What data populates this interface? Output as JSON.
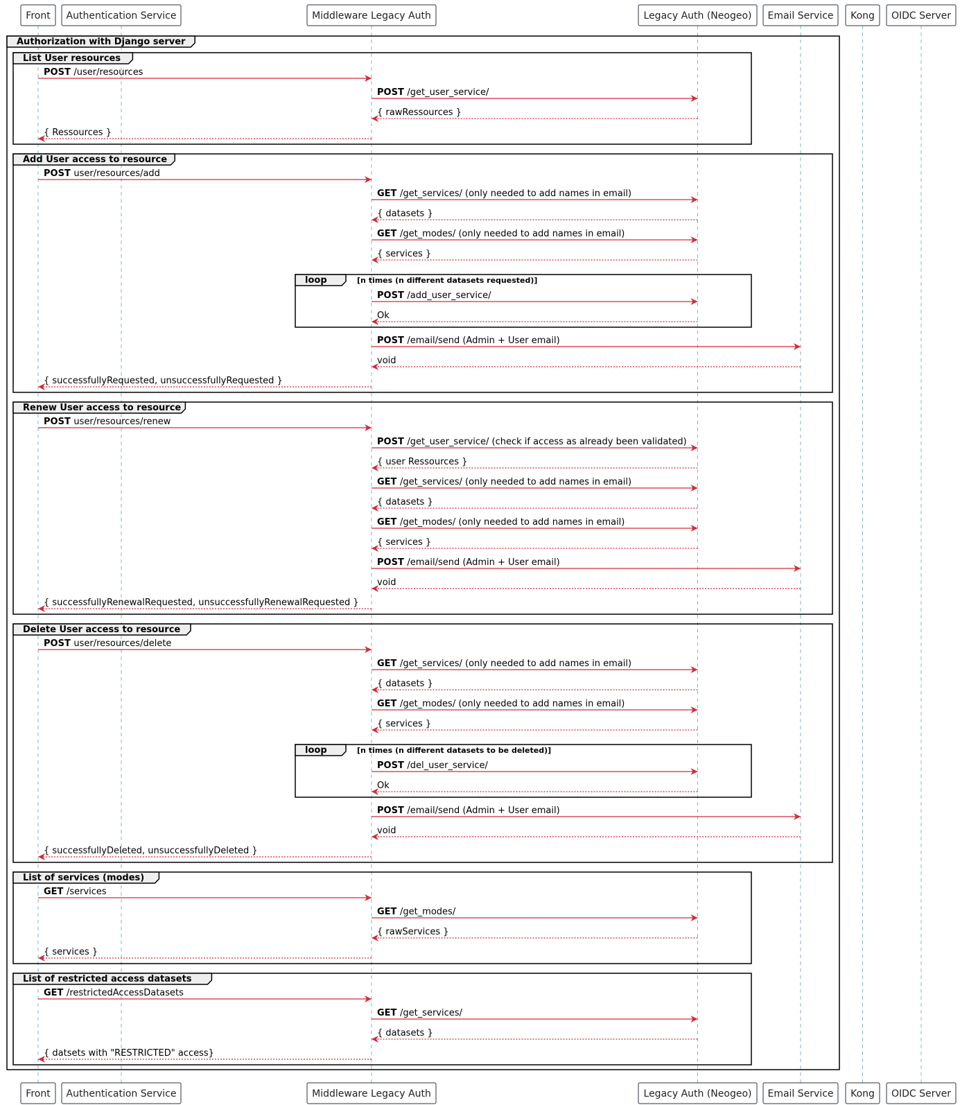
{
  "participants": [
    "Front",
    "Authentication Service",
    "Middleware Legacy Auth",
    "Legacy Auth (Neogeo)",
    "Email Service",
    "Kong",
    "OIDC Server"
  ],
  "colors": {
    "arrow": "#D32B37",
    "lifeline": "#7FB5D0",
    "box_border": "#2B3442",
    "group_border": "#000000",
    "group_tab_fill": "#EEEEEE"
  },
  "outer_group": {
    "title": "Authorization with Django server"
  },
  "groups": [
    {
      "title": "List User resources",
      "messages": [
        {
          "from": 0,
          "to": 2,
          "verb": "POST",
          "text": "/user/resources",
          "dashed": false
        },
        {
          "from": 2,
          "to": 3,
          "verb": "POST",
          "text": "/get_user_service/",
          "dashed": false
        },
        {
          "from": 3,
          "to": 2,
          "verb": "",
          "text": "{ rawRessources }",
          "dashed": true
        },
        {
          "from": 2,
          "to": 0,
          "verb": "",
          "text": "{ Ressources }",
          "dashed": true
        }
      ]
    },
    {
      "title": "Add User access to resource",
      "messages": [
        {
          "from": 0,
          "to": 2,
          "verb": "POST",
          "text": "user/resources/add",
          "dashed": false
        },
        {
          "from": 2,
          "to": 3,
          "verb": "GET",
          "text": "/get_services/ (only needed to add names in email)",
          "dashed": false
        },
        {
          "from": 3,
          "to": 2,
          "verb": "",
          "text": "{ datasets }",
          "dashed": true
        },
        {
          "from": 2,
          "to": 3,
          "verb": "GET",
          "text": "/get_modes/ (only needed to add names in email)",
          "dashed": false
        },
        {
          "from": 3,
          "to": 2,
          "verb": "",
          "text": "{ services }",
          "dashed": true
        },
        {
          "loop": "loop",
          "condition": "[n times (n different datasets requested)]",
          "messages": [
            {
              "from": 2,
              "to": 3,
              "verb": "POST",
              "text": "/add_user_service/",
              "dashed": false
            },
            {
              "from": 3,
              "to": 2,
              "verb": "",
              "text": "Ok",
              "dashed": true
            }
          ]
        },
        {
          "from": 2,
          "to": 4,
          "verb": "POST",
          "text": "/email/send (Admin + User email)",
          "dashed": false
        },
        {
          "from": 4,
          "to": 2,
          "verb": "",
          "text": "void",
          "dashed": true
        },
        {
          "from": 2,
          "to": 0,
          "verb": "",
          "text": "{ successfullyRequested, unsuccessfullyRequested }",
          "dashed": true
        }
      ]
    },
    {
      "title": "Renew User access to resource",
      "messages": [
        {
          "from": 0,
          "to": 2,
          "verb": "POST",
          "text": "user/resources/renew",
          "dashed": false
        },
        {
          "from": 2,
          "to": 3,
          "verb": "POST",
          "text": "/get_user_service/ (check if access as already been validated)",
          "dashed": false
        },
        {
          "from": 3,
          "to": 2,
          "verb": "",
          "text": "{ user Ressources }",
          "dashed": true
        },
        {
          "from": 2,
          "to": 3,
          "verb": "GET",
          "text": "/get_services/ (only needed to add names in email)",
          "dashed": false
        },
        {
          "from": 3,
          "to": 2,
          "verb": "",
          "text": "{ datasets }",
          "dashed": true
        },
        {
          "from": 2,
          "to": 3,
          "verb": "GET",
          "text": "/get_modes/ (only needed to add names in email)",
          "dashed": false
        },
        {
          "from": 3,
          "to": 2,
          "verb": "",
          "text": "{ services }",
          "dashed": true
        },
        {
          "from": 2,
          "to": 4,
          "verb": "POST",
          "text": "/email/send (Admin + User email)",
          "dashed": false
        },
        {
          "from": 4,
          "to": 2,
          "verb": "",
          "text": "void",
          "dashed": true
        },
        {
          "from": 2,
          "to": 0,
          "verb": "",
          "text": "{ successfullyRenewalRequested, unsuccessfullyRenewalRequested }",
          "dashed": true
        }
      ]
    },
    {
      "title": "Delete User access to resource",
      "messages": [
        {
          "from": 0,
          "to": 2,
          "verb": "POST",
          "text": "user/resources/delete",
          "dashed": false
        },
        {
          "from": 2,
          "to": 3,
          "verb": "GET",
          "text": "/get_services/ (only needed to add names in email)",
          "dashed": false
        },
        {
          "from": 3,
          "to": 2,
          "verb": "",
          "text": "{ datasets }",
          "dashed": true
        },
        {
          "from": 2,
          "to": 3,
          "verb": "GET",
          "text": "/get_modes/ (only needed to add names in email)",
          "dashed": false
        },
        {
          "from": 3,
          "to": 2,
          "verb": "",
          "text": "{ services }",
          "dashed": true
        },
        {
          "loop": "loop",
          "condition": "[n times (n different datasets to be deleted)]",
          "messages": [
            {
              "from": 2,
              "to": 3,
              "verb": "POST",
              "text": "/del_user_service/",
              "dashed": false
            },
            {
              "from": 3,
              "to": 2,
              "verb": "",
              "text": "Ok",
              "dashed": true
            }
          ]
        },
        {
          "from": 2,
          "to": 4,
          "verb": "POST",
          "text": "/email/send (Admin + User email)",
          "dashed": false
        },
        {
          "from": 4,
          "to": 2,
          "verb": "",
          "text": "void",
          "dashed": true
        },
        {
          "from": 2,
          "to": 0,
          "verb": "",
          "text": "{ successfullyDeleted, unsuccessfullyDeleted }",
          "dashed": true
        }
      ]
    },
    {
      "title": "List of services (modes)",
      "messages": [
        {
          "from": 0,
          "to": 2,
          "verb": "GET",
          "text": "/services",
          "dashed": false
        },
        {
          "from": 2,
          "to": 3,
          "verb": "GET",
          "text": "/get_modes/",
          "dashed": false
        },
        {
          "from": 3,
          "to": 2,
          "verb": "",
          "text": "{ rawServices }",
          "dashed": true
        },
        {
          "from": 2,
          "to": 0,
          "verb": "",
          "text": "{ services }",
          "dashed": true
        }
      ]
    },
    {
      "title": "List of restricted access datasets",
      "messages": [
        {
          "from": 0,
          "to": 2,
          "verb": "GET",
          "text": "/restrictedAccessDatasets",
          "dashed": false
        },
        {
          "from": 2,
          "to": 3,
          "verb": "GET",
          "text": "/get_services/",
          "dashed": false
        },
        {
          "from": 3,
          "to": 2,
          "verb": "",
          "text": "{ datasets }",
          "dashed": true
        },
        {
          "from": 2,
          "to": 0,
          "verb": "",
          "text": "{ datsets with \"RESTRICTED\" access}",
          "dashed": true
        }
      ]
    }
  ]
}
